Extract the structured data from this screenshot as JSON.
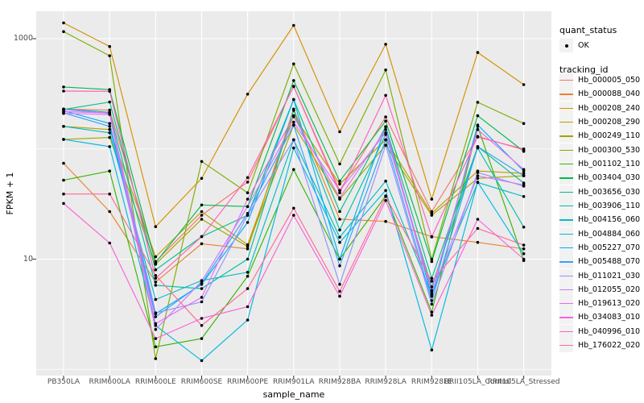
{
  "chart_data": {
    "type": "line",
    "title": "",
    "xlabel": "sample_name",
    "ylabel": "FPKM + 1",
    "y_scale": "log10",
    "y_axis_ticks": [
      1000,
      10
    ],
    "y_minor_gridlines": [
      100,
      1
    ],
    "ylim": [
      0.9,
      1780
    ],
    "grid": true,
    "legend_position": "right",
    "point_color": "#000000",
    "categories": [
      "PB350LA",
      "RRIM600LA",
      "RRIM600LE",
      "RRIM600SE",
      "RRIM600PE",
      "RRIM901LA",
      "RRIM928BA",
      "RRIM928LA",
      "RRIM928LE",
      "RRII105LA_Control",
      "RRII105LA_Stressed"
    ],
    "series": [
      {
        "name": "Hb_000005_050",
        "color": "#F8766D",
        "values": [
          230,
          225,
          9.5,
          25,
          50,
          370,
          42,
          195,
          27,
          128,
          100
        ]
      },
      {
        "name": "Hb_000088_040",
        "color": "#EA8331",
        "values": [
          74,
          27,
          6.2,
          13.8,
          12.4,
          230,
          23,
          22,
          16,
          14.2,
          12.4
        ]
      },
      {
        "name": "Hb_000208_240",
        "color": "#D89000",
        "values": [
          1390,
          850,
          19.7,
          54,
          314,
          1320,
          143,
          890,
          35,
          750,
          383
        ]
      },
      {
        "name": "Hb_000208_290",
        "color": "#C09B00",
        "values": [
          160,
          150,
          10.5,
          27,
          13.5,
          200,
          48,
          121,
          26,
          63,
          60
        ]
      },
      {
        "name": "Hb_000249_110",
        "color": "#A3A500",
        "values": [
          122,
          127,
          9,
          23,
          13,
          165,
          35,
          108,
          25,
          54,
          57
        ]
      },
      {
        "name": "Hb_000300_530",
        "color": "#7CAE00",
        "values": [
          1160,
          700,
          1.25,
          77,
          40,
          590,
          73,
          520,
          10,
          265,
          170
        ]
      },
      {
        "name": "Hb_001102_110",
        "color": "#39B600",
        "values": [
          52,
          63,
          1.6,
          1.9,
          7,
          65,
          10,
          37.5,
          3.3,
          160,
          9.7
        ]
      },
      {
        "name": "Hb_003404_030",
        "color": "#00BB4E",
        "values": [
          365,
          345,
          9.3,
          31,
          30,
          417,
          51,
          179,
          9.5,
          200,
          95
        ]
      },
      {
        "name": "Hb_003656_030",
        "color": "#00C087",
        "values": [
          228,
          266,
          8,
          16,
          25,
          281,
          27,
          159,
          6.7,
          105,
          49
        ]
      },
      {
        "name": "Hb_003906_110",
        "color": "#00C1A3",
        "values": [
          230,
          215,
          5.8,
          5.4,
          10,
          224,
          18.4,
          135,
          5.6,
          102,
          19.5
        ]
      },
      {
        "name": "Hb_004156_060",
        "color": "#00BFC4",
        "values": [
          160,
          140,
          4.3,
          6.4,
          7.6,
          121,
          15.8,
          51,
          4.8,
          49.5,
          37
        ]
      },
      {
        "name": "Hb_004884_060",
        "color": "#00BAE0",
        "values": [
          122,
          105,
          2.5,
          1.2,
          2.8,
          102,
          14.2,
          42,
          1.5,
          50,
          11.2
        ]
      },
      {
        "name": "Hb_005227_070",
        "color": "#00B0F6",
        "values": [
          222,
          170,
          3.2,
          5.9,
          21.5,
          280,
          10,
          159,
          4.6,
          165,
          63
        ]
      },
      {
        "name": "Hb_005488_070",
        "color": "#35A2FF",
        "values": [
          212,
          160,
          3.0,
          6.0,
          26,
          164,
          8.7,
          121,
          4.2,
          105,
          57
        ]
      },
      {
        "name": "Hb_011021_030",
        "color": "#9590FF",
        "values": [
          228,
          210,
          3.25,
          4.1,
          25,
          121,
          5.9,
          108,
          3.9,
          61,
          46
        ]
      },
      {
        "name": "Hb_012055_020",
        "color": "#C77CFF",
        "values": [
          210,
          205,
          2.3,
          6.3,
          30,
          175,
          42,
          140,
          5.0,
          57,
          47
        ]
      },
      {
        "name": "Hb_019613_020",
        "color": "#E76BF3",
        "values": [
          218,
          212,
          2.6,
          4.5,
          35,
          196,
          36,
          150,
          5.2,
          150,
          65
        ]
      },
      {
        "name": "Hb_034083_010",
        "color": "#FA62DB",
        "values": [
          32,
          14,
          1.9,
          2.9,
          3.7,
          25,
          4.6,
          34,
          3.1,
          23,
          10
        ]
      },
      {
        "name": "Hb_040996_010",
        "color": "#FF62BC",
        "values": [
          335,
          333,
          6.7,
          16,
          55,
          368,
          40,
          306,
          15.9,
          130,
          98
        ]
      },
      {
        "name": "Hb_176022_020",
        "color": "#FF6A98",
        "values": [
          39,
          39,
          7.1,
          2.5,
          5.4,
          29,
          5.1,
          37,
          6.3,
          19,
          13.4
        ]
      }
    ]
  },
  "legend": {
    "quant_status": {
      "title": "quant_status",
      "items": [
        {
          "label": "OK",
          "symbol": "black-point"
        }
      ]
    },
    "tracking_id": {
      "title": "tracking_id"
    }
  },
  "theme": {
    "panel_bg": "#EBEBEB",
    "gridline": "#FFFFFF",
    "legend_key_bg": "#F2F2F2",
    "tick_label_color": "#4D4D4D",
    "axis_title_color": "#000000",
    "tick_mark_color": "#333333",
    "background": "#FFFFFF"
  }
}
